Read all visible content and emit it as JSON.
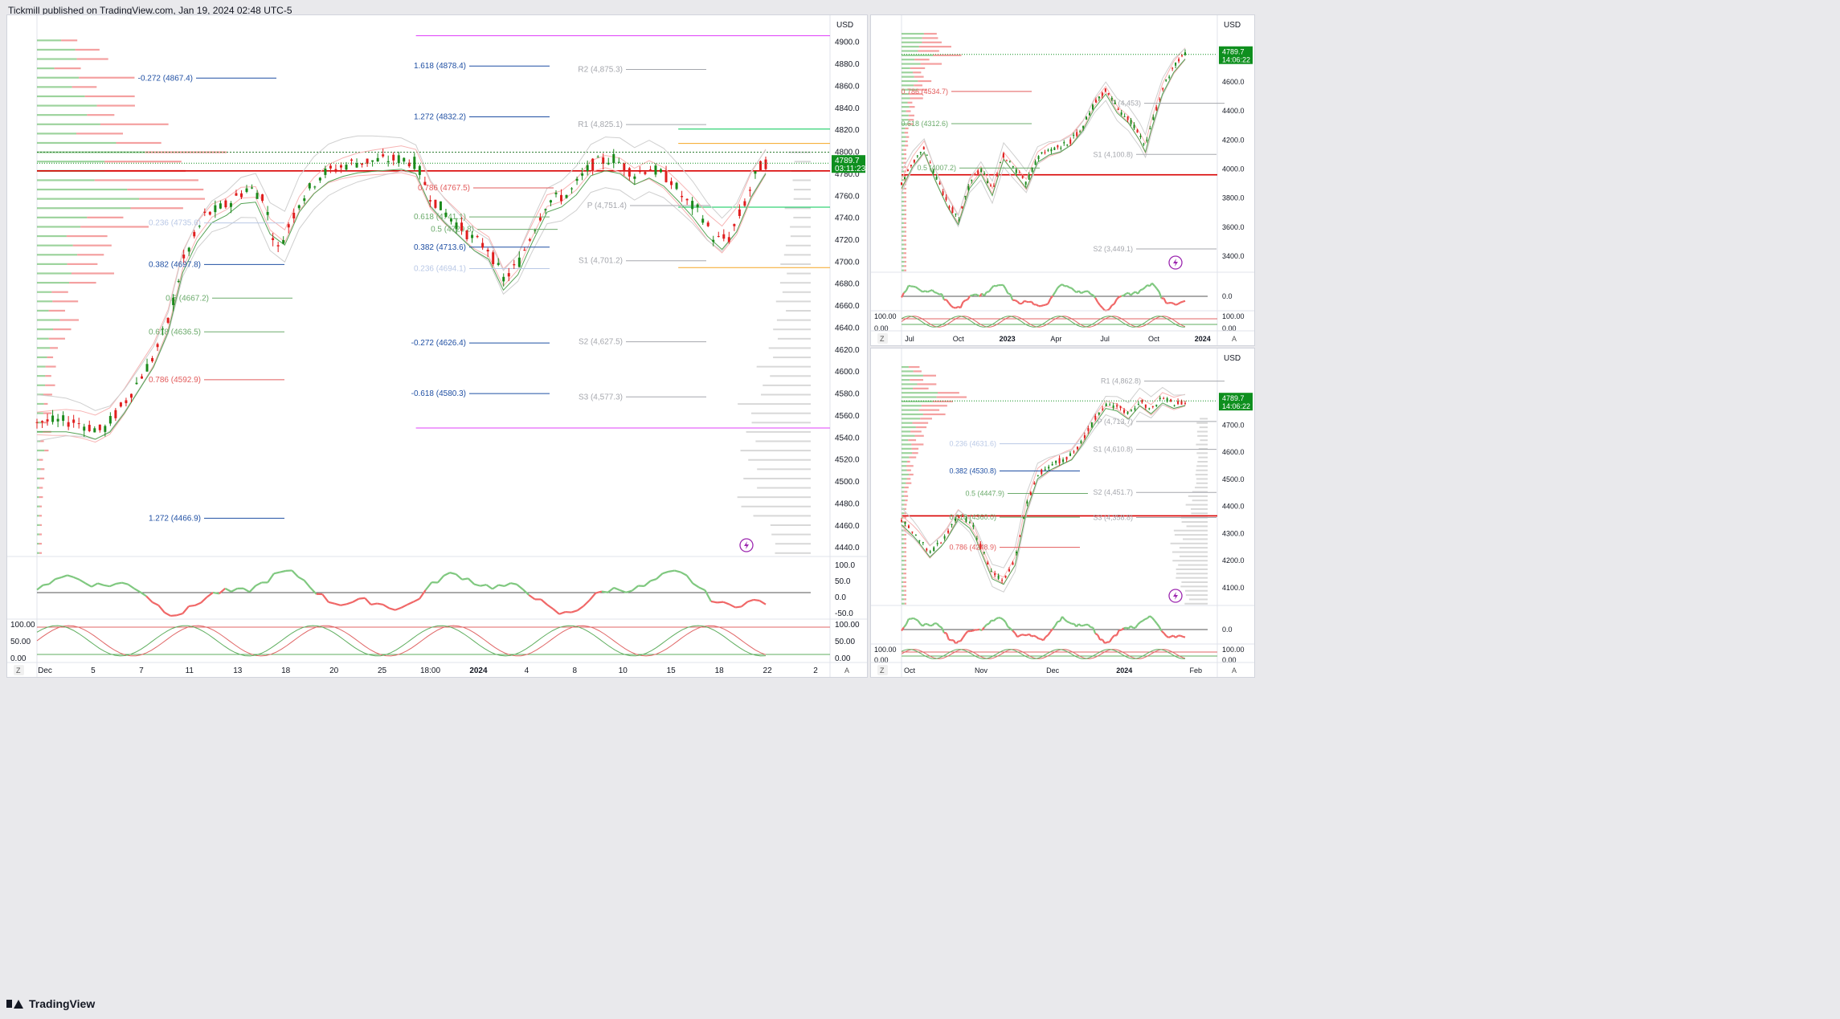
{
  "header": {
    "published": "Tickmill published on TradingView.com, Jan 19, 2024 02:48 UTC-5"
  },
  "footer": {
    "brand": "TradingView"
  },
  "colors": {
    "up": "#1b8a1b",
    "down": "#e01e1e",
    "price_tag": "#0e8f1e",
    "fib_blue": "#1f4fa3",
    "fib_red": "#e25b5b",
    "fib_green": "#6cab6c",
    "pivot": "#a5a7ad",
    "magenta": "#e040fb",
    "orange": "#f5a623",
    "support_red": "#d90000"
  },
  "icons": [
    "lightning-icon",
    "tradingview-logo-icon"
  ],
  "chart_data": [
    {
      "id": "main",
      "type": "candlestick",
      "currency": "USD",
      "ylim": [
        4435,
        4910
      ],
      "y_ticks": [
        "4900.0",
        "4880.0",
        "4860.0",
        "4840.0",
        "4820.0",
        "4800.0",
        "4780.0",
        "4760.0",
        "4740.0",
        "4720.0",
        "4700.0",
        "4680.0",
        "4660.0",
        "4640.0",
        "4620.0",
        "4600.0",
        "4580.0",
        "4560.0",
        "4540.0",
        "4520.0",
        "4500.0",
        "4480.0",
        "4460.0",
        "4440.0"
      ],
      "x_ticks": [
        "Dec",
        "5",
        "7",
        "11",
        "13",
        "18",
        "20",
        "25",
        "18:00",
        "2024",
        "4",
        "8",
        "10",
        "15",
        "18",
        "22",
        "2"
      ],
      "bold_ticks": [
        "2024"
      ],
      "last_price": "4789.7",
      "countdown": "03:11:23",
      "trend_anchors": [
        [
          0,
          4555
        ],
        [
          5,
          4555
        ],
        [
          9,
          4546
        ],
        [
          12,
          4572
        ],
        [
          16,
          4614
        ],
        [
          18,
          4646
        ],
        [
          20,
          4700
        ],
        [
          23,
          4742
        ],
        [
          26,
          4752
        ],
        [
          29,
          4768
        ],
        [
          31,
          4760
        ],
        [
          33,
          4710
        ],
        [
          36,
          4755
        ],
        [
          39,
          4780
        ],
        [
          43,
          4790
        ],
        [
          46,
          4792
        ],
        [
          50,
          4794
        ],
        [
          52,
          4790
        ],
        [
          54,
          4760
        ],
        [
          56,
          4745
        ],
        [
          60,
          4720
        ],
        [
          62,
          4712
        ],
        [
          64,
          4684
        ],
        [
          66,
          4698
        ],
        [
          68,
          4728
        ],
        [
          70,
          4755
        ],
        [
          73,
          4762
        ],
        [
          76,
          4788
        ],
        [
          79,
          4795
        ],
        [
          82,
          4780
        ],
        [
          84,
          4786
        ],
        [
          87,
          4775
        ],
        [
          89,
          4755
        ],
        [
          91,
          4746
        ],
        [
          93,
          4720
        ],
        [
          95,
          4722
        ],
        [
          97,
          4752
        ],
        [
          99,
          4785
        ],
        [
          100,
          4790
        ]
      ],
      "levels": [
        {
          "label": "1.618 (4878.4)",
          "value": 4878.4,
          "tone": "blue"
        },
        {
          "label": "-0.272 (4867.4)",
          "value": 4867.4,
          "tone": "blue"
        },
        {
          "label": "1.272 (4832.2)",
          "value": 4832.2,
          "tone": "blue"
        },
        {
          "label": "R2 (4,875.3)",
          "value": 4875.3,
          "tone": "pivot"
        },
        {
          "label": "R1 (4,825.1)",
          "value": 4825.1,
          "tone": "pivot"
        },
        {
          "label": "0.786 (4767.5)",
          "value": 4767.5,
          "tone": "red"
        },
        {
          "label": "P (4,751.4)",
          "value": 4751.4,
          "tone": "pivot"
        },
        {
          "label": "0.618 (4741.1)",
          "value": 4741.1,
          "tone": "green"
        },
        {
          "label": "0.236 (4735.6)",
          "value": 4735.6,
          "tone": "faint"
        },
        {
          "label": "0.5 (4729.8)",
          "value": 4729.8,
          "tone": "green"
        },
        {
          "label": "0.382 (4713.6)",
          "value": 4713.6,
          "tone": "blue"
        },
        {
          "label": "S1 (4,701.2)",
          "value": 4701.2,
          "tone": "pivot"
        },
        {
          "label": "0.382 (4697.8)",
          "value": 4697.8,
          "tone": "blue"
        },
        {
          "label": "0.236 (4694.1)",
          "value": 4694.1,
          "tone": "faint"
        },
        {
          "label": "0.5 (4667.2)",
          "value": 4667.2,
          "tone": "green"
        },
        {
          "label": "0.618 (4636.5)",
          "value": 4636.5,
          "tone": "green"
        },
        {
          "label": "S2 (4,627.5)",
          "value": 4627.5,
          "tone": "pivot"
        },
        {
          "label": "-0.272 (4626.4)",
          "value": 4626.4,
          "tone": "blue"
        },
        {
          "label": "0.786 (4592.9)",
          "value": 4592.9,
          "tone": "red"
        },
        {
          "label": "-0.618 (4580.3)",
          "value": 4580.3,
          "tone": "blue"
        },
        {
          "label": "S3 (4,577.3)",
          "value": 4577.3,
          "tone": "pivot"
        },
        {
          "label": "1.272 (4466.9)",
          "value": 4466.9,
          "tone": "blue"
        }
      ],
      "hlines": [
        4783,
        4800,
        4808,
        4821,
        4750,
        4695,
        4906,
        4549
      ],
      "osc1_ticks": [
        "100.0",
        "50.0",
        "0.0",
        "-50.0"
      ],
      "osc2_ticks": [
        "100.00",
        "50.00",
        "0.00"
      ]
    },
    {
      "id": "top-right",
      "type": "candlestick",
      "currency": "USD",
      "ylim": [
        3300,
        4960
      ],
      "y_ticks": [
        "4600.0",
        "4400.0",
        "4200.0",
        "4000.0",
        "3800.0",
        "3600.0",
        "3400.0"
      ],
      "x_ticks": [
        "Jul",
        "Oct",
        "2023",
        "Apr",
        "Jul",
        "Oct",
        "2024"
      ],
      "bold_ticks": [
        "2023",
        "2024"
      ],
      "last_price": "4789.7",
      "countdown": "14:06:22",
      "trend_anchors": [
        [
          0,
          3900
        ],
        [
          4,
          4050
        ],
        [
          8,
          4150
        ],
        [
          12,
          3950
        ],
        [
          16,
          3780
        ],
        [
          20,
          3650
        ],
        [
          24,
          3900
        ],
        [
          28,
          4000
        ],
        [
          32,
          3850
        ],
        [
          36,
          4100
        ],
        [
          40,
          4000
        ],
        [
          44,
          3900
        ],
        [
          48,
          4080
        ],
        [
          52,
          4130
        ],
        [
          56,
          4150
        ],
        [
          60,
          4200
        ],
        [
          64,
          4300
        ],
        [
          68,
          4450
        ],
        [
          72,
          4550
        ],
        [
          76,
          4420
        ],
        [
          80,
          4350
        ],
        [
          84,
          4230
        ],
        [
          86,
          4150
        ],
        [
          88,
          4300
        ],
        [
          92,
          4550
        ],
        [
          96,
          4700
        ],
        [
          100,
          4790
        ]
      ],
      "levels": [
        {
          "label": "0.786 (4534.7)",
          "value": 4534.7,
          "tone": "red"
        },
        {
          "label": "P (4,453)",
          "value": 4453,
          "tone": "pivot"
        },
        {
          "label": "0.618 (4312.6)",
          "value": 4312.6,
          "tone": "green"
        },
        {
          "label": "S1 (4,100.8)",
          "value": 4100.8,
          "tone": "pivot"
        },
        {
          "label": "0.5 (4007.2)",
          "value": 4007.2,
          "tone": "green"
        },
        {
          "label": "S2 (3,449.1)",
          "value": 3449.1,
          "tone": "pivot"
        }
      ],
      "osc1_ticks": [
        "0.0"
      ],
      "osc2_ticks": [
        "100.00",
        "0.00"
      ]
    },
    {
      "id": "bottom-right",
      "type": "candlestick",
      "currency": "USD",
      "ylim": [
        4040,
        4930
      ],
      "y_ticks": [
        "4700.0",
        "4600.0",
        "4500.0",
        "4400.0",
        "4300.0",
        "4200.0",
        "4100.0"
      ],
      "x_ticks": [
        "Oct",
        "Nov",
        "Dec",
        "2024",
        "Feb"
      ],
      "bold_ticks": [
        "2024"
      ],
      "last_price": "4789.7",
      "countdown": "14:06:22",
      "trend_anchors": [
        [
          0,
          4350
        ],
        [
          5,
          4300
        ],
        [
          10,
          4230
        ],
        [
          15,
          4280
        ],
        [
          20,
          4370
        ],
        [
          25,
          4330
        ],
        [
          28,
          4250
        ],
        [
          32,
          4150
        ],
        [
          36,
          4130
        ],
        [
          40,
          4200
        ],
        [
          44,
          4400
        ],
        [
          48,
          4520
        ],
        [
          52,
          4550
        ],
        [
          56,
          4570
        ],
        [
          60,
          4590
        ],
        [
          64,
          4650
        ],
        [
          68,
          4720
        ],
        [
          72,
          4780
        ],
        [
          76,
          4770
        ],
        [
          80,
          4740
        ],
        [
          84,
          4790
        ],
        [
          88,
          4760
        ],
        [
          92,
          4800
        ],
        [
          96,
          4780
        ],
        [
          100,
          4790
        ]
      ],
      "levels": [
        {
          "label": "R1 (4,862.8)",
          "value": 4862.8,
          "tone": "pivot"
        },
        {
          "label": "P (4,713.7)",
          "value": 4713.7,
          "tone": "pivot"
        },
        {
          "label": "0.236 (4631.6)",
          "value": 4631.6,
          "tone": "faint"
        },
        {
          "label": "S1 (4,610.8)",
          "value": 4610.8,
          "tone": "pivot"
        },
        {
          "label": "0.382 (4530.8)",
          "value": 4530.8,
          "tone": "blue"
        },
        {
          "label": "S2 (4,451.7)",
          "value": 4451.7,
          "tone": "pivot"
        },
        {
          "label": "0.5 (4447.9)",
          "value": 4447.9,
          "tone": "green"
        },
        {
          "label": "0.618 (4360.0)",
          "value": 4360,
          "tone": "green"
        },
        {
          "label": "S3 (4,358.8)",
          "value": 4358.8,
          "tone": "pivot"
        },
        {
          "label": "0.786 (4248.9)",
          "value": 4248.9,
          "tone": "red"
        }
      ],
      "osc1_ticks": [
        "0.0"
      ],
      "osc2_ticks": [
        "100.00",
        "0.00"
      ]
    }
  ]
}
